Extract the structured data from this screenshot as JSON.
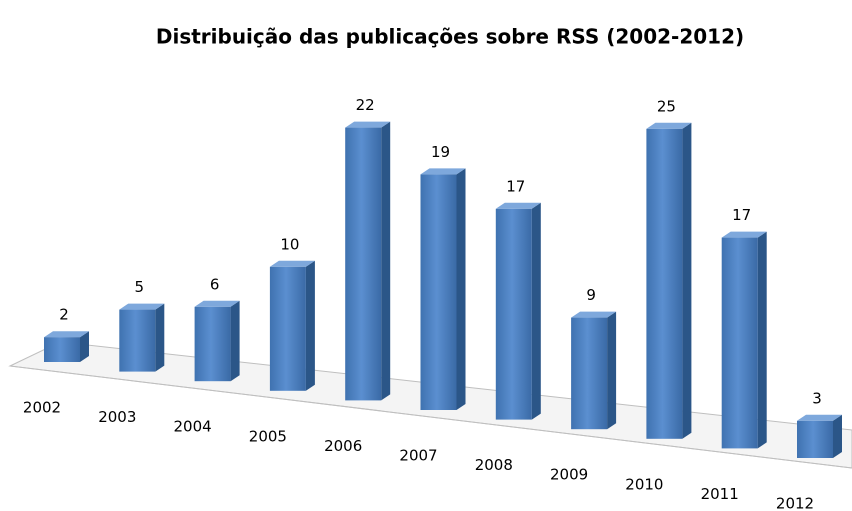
{
  "chart_data": {
    "type": "bar3d",
    "title": "Distribuição das publicações sobre RSS (2002-2012)",
    "categories": [
      "2002",
      "2003",
      "2004",
      "2005",
      "2006",
      "2007",
      "2008",
      "2009",
      "2010",
      "2011",
      "2012"
    ],
    "values": [
      2,
      5,
      6,
      10,
      22,
      19,
      17,
      9,
      25,
      17,
      3
    ],
    "color": "#4f81bd"
  }
}
